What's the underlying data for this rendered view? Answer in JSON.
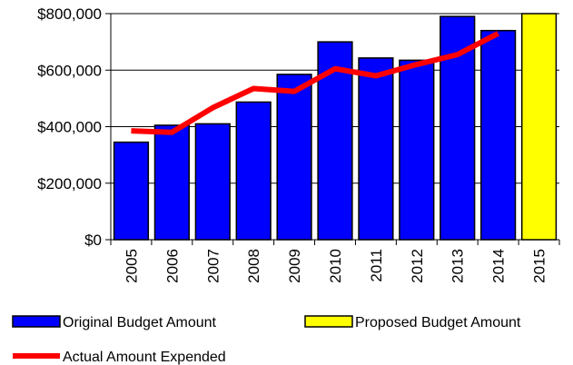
{
  "chart_data": {
    "type": "bar",
    "categories": [
      "2005",
      "2006",
      "2007",
      "2008",
      "2009",
      "2010",
      "2011",
      "2012",
      "2013",
      "2014",
      "2015"
    ],
    "series": [
      {
        "name": "Original Budget Amount",
        "type": "bar",
        "color": "#0000ff",
        "values": [
          345000,
          405000,
          410000,
          487000,
          585000,
          700000,
          643000,
          635000,
          790000,
          740000,
          null
        ]
      },
      {
        "name": "Proposed Budget Amount",
        "type": "bar",
        "color": "#ffff00",
        "values": [
          null,
          null,
          null,
          null,
          null,
          null,
          null,
          null,
          null,
          null,
          800000
        ]
      },
      {
        "name": "Actual Amount Expended",
        "type": "line",
        "color": "#ff0000",
        "values": [
          385000,
          380000,
          467000,
          535000,
          525000,
          605000,
          580000,
          620000,
          655000,
          730000,
          null
        ]
      }
    ],
    "ylim": [
      0,
      800000
    ],
    "y_ticks": [
      "$0",
      "$200,000",
      "$400,000",
      "$600,000",
      "$800,000"
    ],
    "y_tick_values": [
      0,
      200000,
      400000,
      600000,
      800000
    ],
    "x_tick_rotation": "vertical",
    "grid": "horizontal",
    "legend_position": "bottom",
    "title": "",
    "xlabel": "",
    "ylabel": ""
  }
}
